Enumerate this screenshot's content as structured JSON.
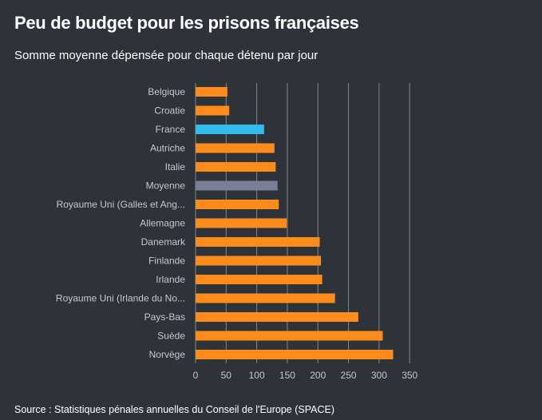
{
  "header": {
    "title": "Peu de budget pour les prisons françaises",
    "subtitle": "Somme moyenne dépensée pour chaque détenu par jour"
  },
  "footer": {
    "source": "Source : Statistiques pénales annuelles du Conseil de l'Europe (SPACE)"
  },
  "colors": {
    "background": "#2e3339",
    "bar_default": "#ff8c1a",
    "bar_highlight_france": "#33bbee",
    "bar_highlight_average": "#7a7f97",
    "grid": "#c9ccd0",
    "label": "#c6c9cd"
  },
  "chart_data": {
    "type": "bar",
    "orientation": "horizontal",
    "categories": [
      "Belgique",
      "Croatie",
      "France",
      "Autriche",
      "Italie",
      "Moyenne",
      "Royaume Uni (Galles et Ang...",
      "Allemagne",
      "Danemark",
      "Finlande",
      "Irlande",
      "Royaume Uni (Irlande du No...",
      "Pays-Bas",
      "Suède",
      "Norvège"
    ],
    "values": [
      52,
      55,
      112,
      129,
      131,
      134,
      136,
      149,
      203,
      205,
      207,
      228,
      266,
      306,
      323
    ],
    "highlight": {
      "France": "bar_highlight_france",
      "Moyenne": "bar_highlight_average"
    },
    "xlim": [
      0,
      350
    ],
    "xticks": [
      0,
      50,
      100,
      150,
      200,
      250,
      300,
      350
    ],
    "grid": true,
    "legend": "none"
  }
}
